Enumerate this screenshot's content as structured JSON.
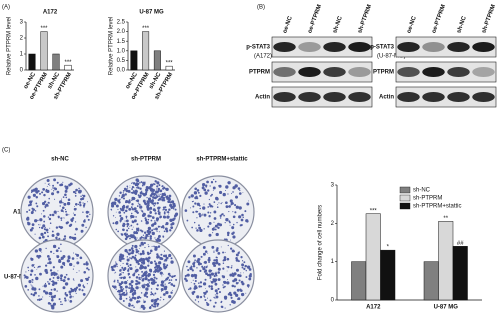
{
  "panels": {
    "a": "(A)",
    "b": "(B)",
    "c": "(C)"
  },
  "blot": {
    "cells": [
      "(A172)",
      "(U-87-MG)"
    ],
    "lanes": [
      "oe-NC",
      "oe-PTPRM",
      "sh-NC",
      "sh-PTPRM"
    ],
    "rows": [
      "p-STAT3",
      "PTPRM",
      "Actin"
    ]
  },
  "colonies": {
    "columns": [
      "sh-NC",
      "sh-PTPRM",
      "sh-PTPRM+stattic"
    ],
    "rows": [
      "A172",
      "U-87-MG"
    ]
  },
  "chart_data": [
    {
      "type": "bar",
      "title": "A172",
      "y_label": "Relative PTPRM level",
      "categories": [
        "oe-NC",
        "oe-PTPRM",
        "sh-NC",
        "sh-PTPRM"
      ],
      "values": [
        1.0,
        2.4,
        1.0,
        0.3
      ],
      "colors": [
        "#111111",
        "#c8c8c8",
        "#808080",
        "#ffffff"
      ],
      "significance": [
        null,
        "***",
        null,
        "***"
      ],
      "ylim": [
        0,
        3
      ],
      "yticks": [
        0,
        1,
        2,
        3
      ]
    },
    {
      "type": "bar",
      "title": "U-87 MG",
      "y_label": "Relative PTPRM level",
      "categories": [
        "oe-NC",
        "oe-PTPRM",
        "sh-NC",
        "sh-PTPRM"
      ],
      "values": [
        1.0,
        2.0,
        1.0,
        0.2
      ],
      "colors": [
        "#111111",
        "#c8c8c8",
        "#808080",
        "#ffffff"
      ],
      "significance": [
        null,
        "***",
        null,
        "***"
      ],
      "ylim": [
        0,
        2.5
      ],
      "yticks": [
        {
          "value": 0,
          "label": "0.0"
        },
        {
          "value": 0.5,
          "label": "0.5"
        },
        {
          "value": 1,
          "label": "1.0"
        },
        {
          "value": 1.5,
          "label": "1.5"
        },
        {
          "value": 2,
          "label": "2.0"
        },
        {
          "value": 2.5,
          "label": "2.5"
        }
      ]
    },
    {
      "type": "grouped-bar",
      "y_label": "Fold change of cell numbers",
      "legend": "upper right",
      "categories": [
        "A172",
        "U-87 MG"
      ],
      "series": [
        {
          "name": "sh-NC",
          "color": "#808080",
          "values": [
            1.0,
            1.0
          ],
          "significance": [
            null,
            null
          ]
        },
        {
          "name": "sh-PTPRM",
          "color": "#d8d8d8",
          "values": [
            2.25,
            2.05
          ],
          "significance": [
            "***",
            "**"
          ]
        },
        {
          "name": "sh-PTPRM+stattic",
          "color": "#111111",
          "values": [
            1.3,
            1.4
          ],
          "significance": [
            "*",
            "##"
          ]
        }
      ],
      "ylim": [
        0,
        3
      ],
      "yticks": [
        0,
        1,
        2,
        3
      ]
    }
  ]
}
